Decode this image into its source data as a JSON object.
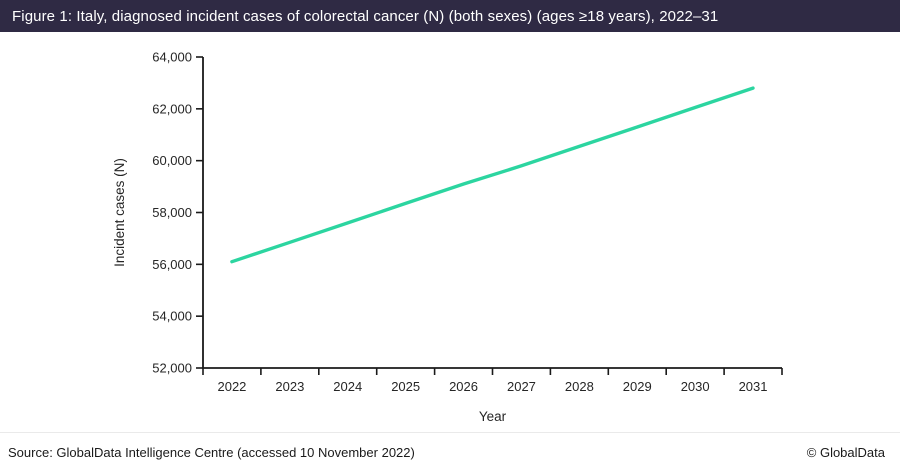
{
  "header": {
    "title": "Figure 1: Italy, diagnosed incident cases of colorectal cancer (N) (both sexes) (ages ≥18 years), 2022–31",
    "bg_color": "#2f2a44",
    "text_color": "#ffffff"
  },
  "chart_data": {
    "type": "line",
    "title": "",
    "categories": [
      "2022",
      "2023",
      "2024",
      "2025",
      "2026",
      "2027",
      "2028",
      "2029",
      "2030",
      "2031"
    ],
    "series": [
      {
        "name": "Incident cases (N)",
        "color": "#2cd5a0",
        "values": [
          56100,
          56850,
          57600,
          58350,
          59100,
          59800,
          60550,
          61300,
          62050,
          62800
        ]
      }
    ],
    "xlabel": "Year",
    "ylabel": "Incident cases (N)",
    "ylim": [
      52000,
      64000
    ],
    "ytick_values": [
      52000,
      54000,
      56000,
      58000,
      60000,
      62000,
      64000
    ],
    "ytick_labels": [
      "52,000",
      "54,000",
      "56,000",
      "58,000",
      "60,000",
      "62,000",
      "64,000"
    ],
    "grid": false,
    "legend_position": "none",
    "axis_color": "#1a1a1a",
    "label_color": "#262626",
    "line_width": 3.4
  },
  "footer": {
    "source": "Source: GlobalData Intelligence Centre (accessed 10 November 2022)",
    "copyright": "© GlobalData"
  }
}
